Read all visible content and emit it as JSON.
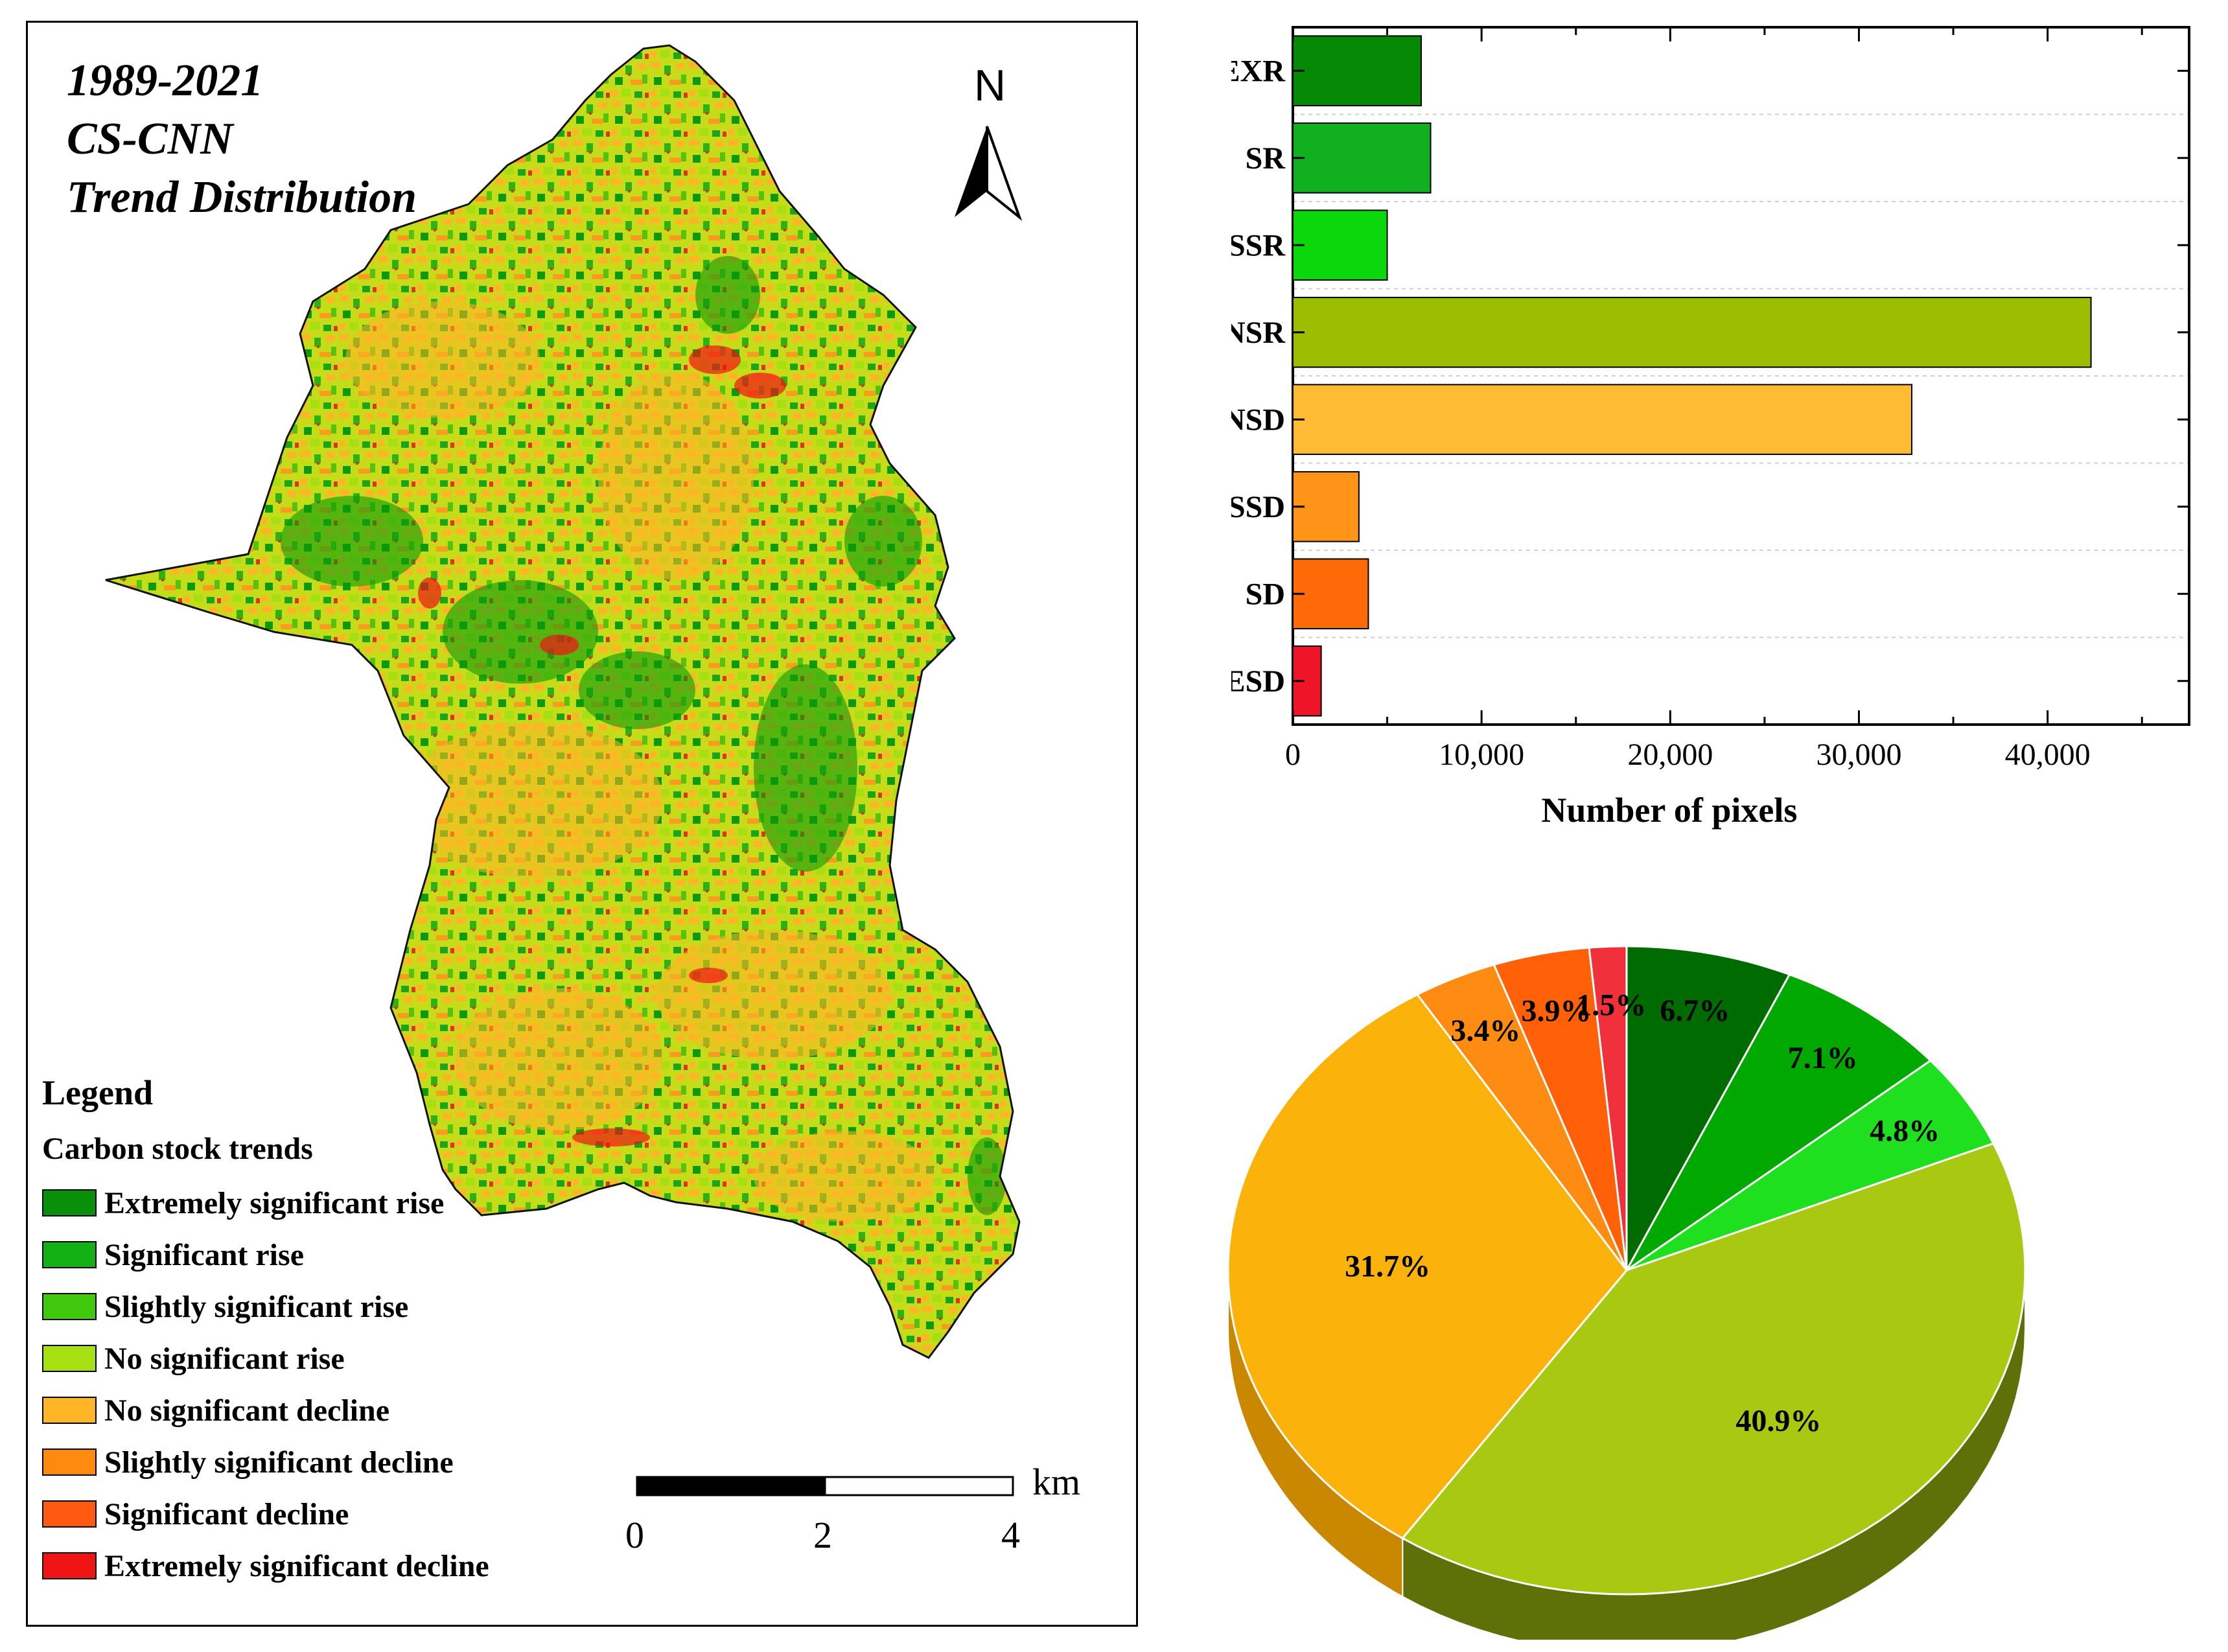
{
  "map": {
    "title_lines": [
      "1989-2021",
      "CS-CNN",
      "Trend Distribution"
    ],
    "north_label": "N",
    "legend_title": "Legend",
    "legend_subtitle": "Carbon stock trends",
    "legend_items": [
      {
        "label": "Extremely significant rise",
        "color": "#0a8f0a"
      },
      {
        "label": "Significant rise",
        "color": "#12b012"
      },
      {
        "label": "Slightly significant rise",
        "color": "#3fc80c"
      },
      {
        "label": "No significant rise",
        "color": "#a6e012"
      },
      {
        "label": "No significant decline",
        "color": "#ffb526"
      },
      {
        "label": "Slightly significant decline",
        "color": "#ff8a10"
      },
      {
        "label": "Significant decline",
        "color": "#ff5a10"
      },
      {
        "label": "Extremely significant decline",
        "color": "#f01414"
      }
    ],
    "scale_bar": {
      "unit": "km",
      "ticks": [
        "0",
        "2",
        "4"
      ]
    }
  },
  "chart_data": [
    {
      "type": "bar",
      "orientation": "horizontal",
      "categories": [
        "EXR",
        "SR",
        "SSR",
        "NSR",
        "NSD",
        "SSD",
        "SD",
        "ESD"
      ],
      "values": [
        6800,
        7300,
        5000,
        42300,
        32800,
        3500,
        4000,
        1500
      ],
      "colors": [
        "#068a06",
        "#10b020",
        "#0ad80a",
        "#9bbf00",
        "#ffbb33",
        "#ff9418",
        "#ff6a08",
        "#f01428"
      ],
      "xlabel": "Number of pixels",
      "xlim": [
        0,
        47500
      ],
      "xticks": [
        "0",
        "10,000",
        "20,000",
        "30,000",
        "40,000"
      ],
      "xtick_values": [
        0,
        10000,
        20000,
        30000,
        40000
      ],
      "grid": "horizontal dashed"
    },
    {
      "type": "pie",
      "style": "3d",
      "labels": [
        "6.7%",
        "7.1%",
        "4.8%",
        "40.9%",
        "31.7%",
        "3.4%",
        "3.9%",
        "1.5%"
      ],
      "values": [
        6.7,
        7.1,
        4.8,
        40.9,
        31.7,
        3.4,
        3.9,
        1.5
      ],
      "colors": [
        "#006b00",
        "#00a800",
        "#1fe01f",
        "#a8c812",
        "#fbb20a",
        "#ff8c12",
        "#ff6008",
        "#f0303a"
      ],
      "side_colors": [
        "#004400",
        "#006a00",
        "#139013",
        "#5e7008",
        "#c98800",
        "#c06000",
        "#b04000",
        "#b01c24"
      ],
      "start": "12 o'clock, clockwise"
    }
  ]
}
